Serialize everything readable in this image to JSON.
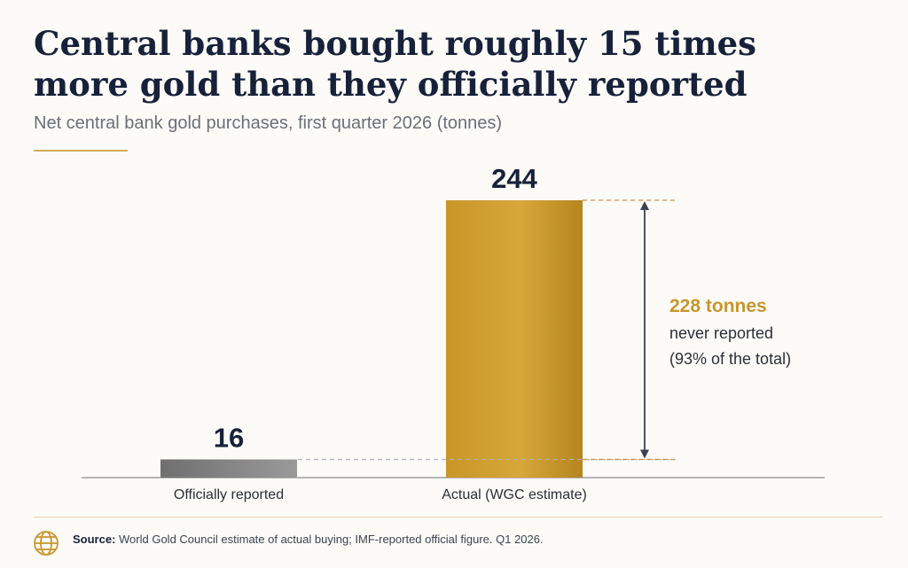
{
  "title_lines": [
    "Central banks bought roughly 15 times",
    "more gold than they officially reported"
  ],
  "subtitle": "Net central bank gold purchases, first quarter 2026 (tonnes)",
  "colors": {
    "accent_gold": "#c8962c",
    "title": "#17213a",
    "reported_bar": "#7d7d7d",
    "arrow": "#3b4250",
    "rule": "#d4aa57"
  },
  "chart_data": {
    "type": "bar",
    "title": "",
    "xlabel": "",
    "ylabel": "",
    "categories": [
      "Officially reported",
      "Actual (WGC estimate)"
    ],
    "values": [
      16,
      244
    ],
    "data_labels": [
      "16",
      "244"
    ],
    "ylim": [
      0,
      244
    ],
    "grid": false,
    "annotation": {
      "from_value": 16,
      "to_value": 244,
      "headline": "228 tonnes",
      "line1": "never reported",
      "line2": "(93% of the total)"
    }
  },
  "footer": {
    "source_label": "Source:",
    "source_text": " World Gold Council estimate of actual buying; IMF-reported official figure. Q1 2026.",
    "icon": "globe-icon"
  }
}
